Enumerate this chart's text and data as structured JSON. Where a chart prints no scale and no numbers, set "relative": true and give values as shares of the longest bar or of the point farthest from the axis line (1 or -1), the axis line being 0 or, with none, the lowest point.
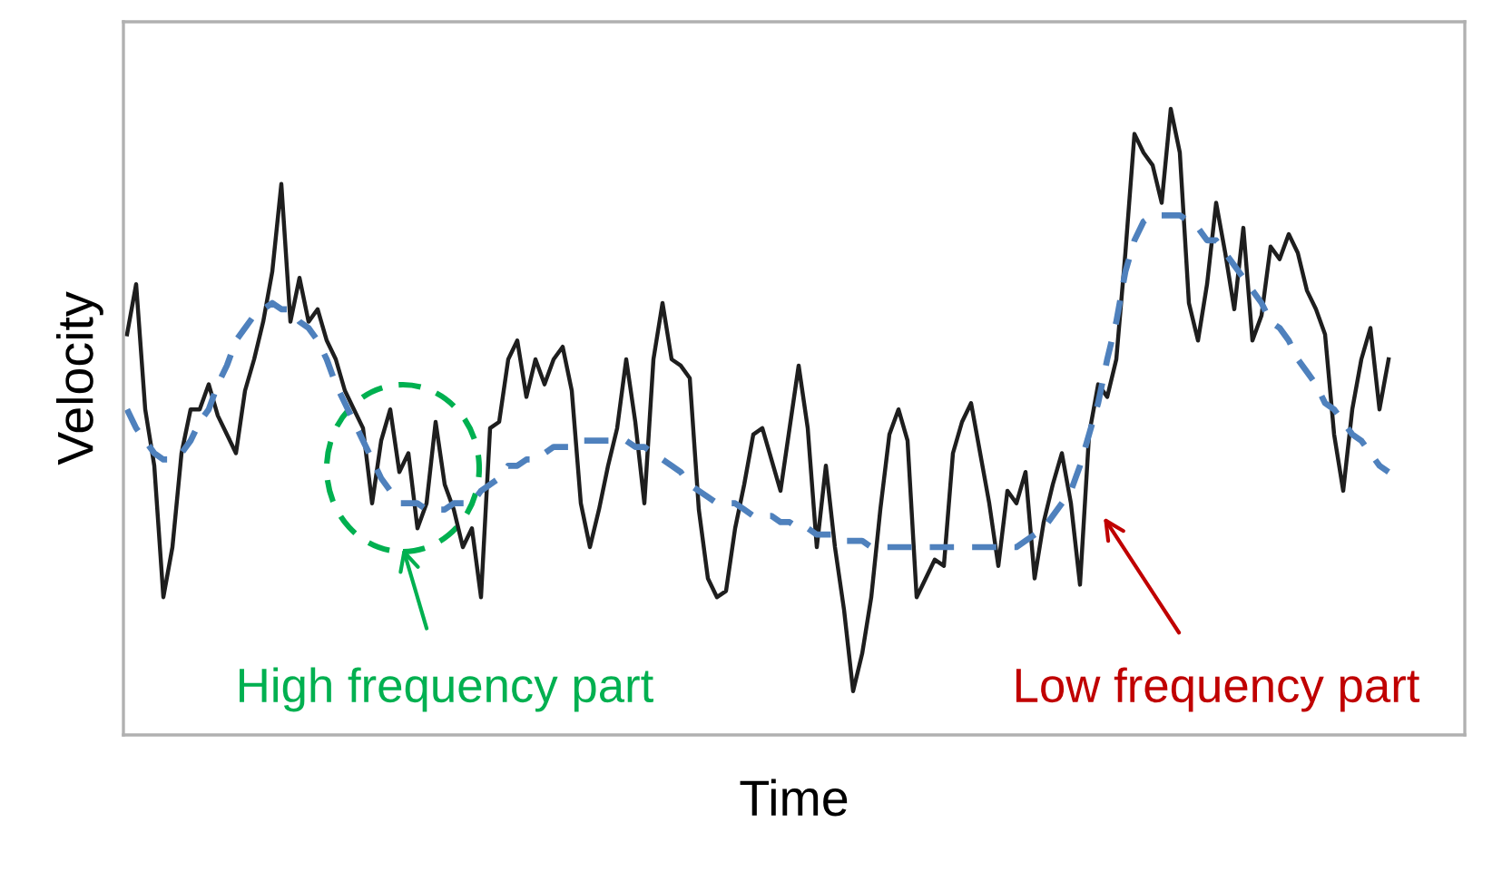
{
  "chart_data": {
    "type": "line",
    "relative": true,
    "xlabel": "Time",
    "ylabel": "Velocity",
    "categories": [
      null,
      null,
      null,
      null,
      null,
      null,
      null,
      null,
      null,
      null,
      null,
      null,
      null,
      null,
      null,
      null,
      null,
      null,
      null,
      null,
      null,
      null,
      null,
      null,
      null,
      null,
      null,
      null,
      null,
      null,
      null,
      null,
      null,
      null,
      null,
      null,
      null,
      null,
      null,
      null,
      null,
      null,
      null,
      null,
      null,
      null,
      null,
      null,
      null,
      null,
      null,
      null,
      null,
      null,
      null,
      null,
      null,
      null,
      null,
      null,
      null,
      null,
      null,
      null,
      null,
      null,
      null,
      null,
      null,
      null,
      null,
      null,
      null,
      null,
      null,
      null,
      null,
      null,
      null,
      null,
      null,
      null,
      null,
      null,
      null,
      null,
      null,
      null,
      null,
      null,
      null,
      null,
      null,
      null,
      null,
      null,
      null,
      null,
      null,
      null,
      null,
      null,
      null,
      null,
      null,
      null,
      null,
      null,
      null,
      null,
      null,
      null,
      null,
      null,
      null,
      null,
      null,
      null,
      null,
      null,
      null,
      null,
      null,
      null,
      null,
      null,
      null,
      null,
      null,
      null,
      null,
      null,
      null,
      null,
      null,
      null,
      null,
      null,
      null,
      null
    ],
    "series": [
      {
        "color": "#1e1e1e",
        "line_style": "solid",
        "values": [
          0.64,
          0.72,
          0.52,
          0.43,
          0.22,
          0.3,
          0.45,
          0.52,
          0.52,
          0.56,
          0.51,
          0.48,
          0.45,
          0.55,
          0.6,
          0.66,
          0.74,
          0.88,
          0.66,
          0.73,
          0.66,
          0.68,
          0.63,
          0.6,
          0.55,
          0.52,
          0.49,
          0.37,
          0.47,
          0.52,
          0.42,
          0.45,
          0.33,
          0.37,
          0.5,
          0.4,
          0.36,
          0.3,
          0.33,
          0.22,
          0.49,
          0.5,
          0.6,
          0.63,
          0.54,
          0.6,
          0.56,
          0.6,
          0.62,
          0.55,
          0.37,
          0.3,
          0.36,
          0.43,
          0.49,
          0.6,
          0.5,
          0.37,
          0.6,
          0.69,
          0.6,
          0.59,
          0.57,
          0.36,
          0.25,
          0.22,
          0.23,
          0.33,
          0.4,
          0.48,
          0.49,
          0.44,
          0.39,
          0.49,
          0.59,
          0.49,
          0.3,
          0.43,
          0.3,
          0.2,
          0.07,
          0.13,
          0.22,
          0.36,
          0.48,
          0.52,
          0.47,
          0.22,
          0.25,
          0.28,
          0.27,
          0.45,
          0.5,
          0.53,
          0.45,
          0.37,
          0.27,
          0.39,
          0.37,
          0.42,
          0.25,
          0.34,
          0.4,
          0.45,
          0.37,
          0.24,
          0.48,
          0.56,
          0.54,
          0.6,
          0.77,
          0.96,
          0.93,
          0.91,
          0.85,
          1,
          0.93,
          0.69,
          0.63,
          0.72,
          0.85,
          0.77,
          0.68,
          0.81,
          0.63,
          0.67,
          0.78,
          0.76,
          0.8,
          0.77,
          0.71,
          0.68,
          0.64,
          0.48,
          0.39,
          0.52,
          0.6,
          0.65,
          0.52,
          0.6
        ]
      },
      {
        "color": "#4f81bd",
        "line_style": "dashed",
        "values": [
          0.52,
          0.49,
          0.47,
          0.45,
          0.44,
          0.44,
          0.45,
          0.47,
          0.5,
          0.52,
          0.56,
          0.59,
          0.63,
          0.65,
          0.67,
          0.68,
          0.69,
          0.68,
          0.68,
          0.66,
          0.65,
          0.63,
          0.6,
          0.56,
          0.53,
          0.5,
          0.47,
          0.44,
          0.41,
          0.39,
          0.37,
          0.37,
          0.37,
          0.36,
          0.36,
          0.36,
          0.37,
          0.37,
          0.37,
          0.39,
          0.4,
          0.41,
          0.43,
          0.43,
          0.44,
          0.44,
          0.45,
          0.46,
          0.46,
          0.46,
          0.47,
          0.47,
          0.47,
          0.47,
          0.47,
          0.47,
          0.46,
          0.46,
          0.45,
          0.44,
          0.43,
          0.42,
          0.4,
          0.39,
          0.38,
          0.37,
          0.37,
          0.37,
          0.36,
          0.35,
          0.35,
          0.35,
          0.34,
          0.34,
          0.33,
          0.33,
          0.32,
          0.32,
          0.32,
          0.31,
          0.31,
          0.31,
          0.3,
          0.3,
          0.3,
          0.3,
          0.3,
          0.3,
          0.3,
          0.3,
          0.3,
          0.3,
          0.3,
          0.3,
          0.3,
          0.3,
          0.3,
          0.3,
          0.3,
          0.31,
          0.32,
          0.33,
          0.35,
          0.37,
          0.39,
          0.43,
          0.48,
          0.53,
          0.6,
          0.66,
          0.74,
          0.79,
          0.82,
          0.83,
          0.83,
          0.83,
          0.83,
          0.82,
          0.81,
          0.79,
          0.79,
          0.77,
          0.75,
          0.73,
          0.71,
          0.69,
          0.66,
          0.65,
          0.63,
          0.6,
          0.58,
          0.56,
          0.53,
          0.52,
          0.5,
          0.48,
          0.47,
          0.45,
          0.43,
          0.42
        ]
      }
    ],
    "annotations": [
      "High frequency part",
      "Low frequency part"
    ]
  }
}
